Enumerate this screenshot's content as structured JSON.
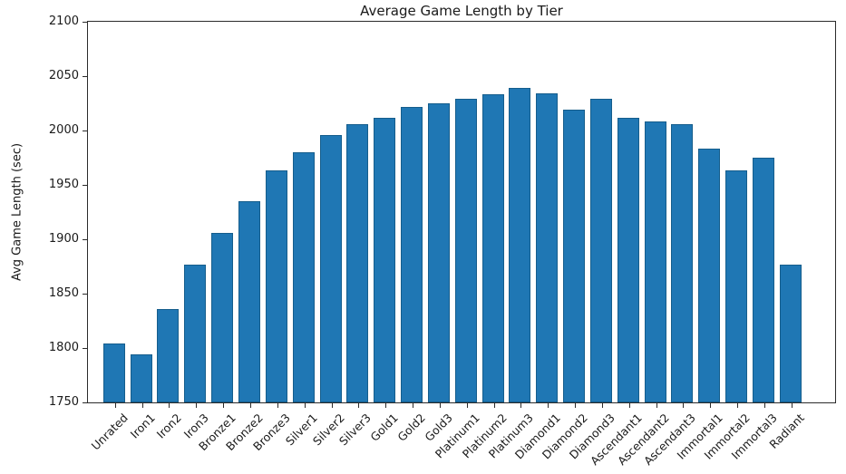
{
  "figure": {
    "title": "Average Game Length by Tier",
    "ylabel": "Avg Game Length (sec)"
  },
  "colors": {
    "bar_fill": "#1f77b4",
    "bar_edge": "#155d8c",
    "axis": "#2b2b2b",
    "text": "#1a1a1a",
    "background": "#ffffff"
  },
  "chart_data": {
    "type": "bar",
    "title": "Average Game Length by Tier",
    "xlabel": "",
    "ylabel": "Avg Game Length (sec)",
    "ylim": [
      1750,
      2100
    ],
    "yticks": [
      1750,
      1800,
      1850,
      1900,
      1950,
      2000,
      2050,
      2100
    ],
    "grid": false,
    "legend_position": "none",
    "x_tick_rotation_deg": 45,
    "categories": [
      "Unrated",
      "Iron1",
      "Iron2",
      "Iron3",
      "Bronze1",
      "Bronze2",
      "Bronze3",
      "Silver1",
      "Silver2",
      "Silver3",
      "Gold1",
      "Gold2",
      "Gold3",
      "Platinum1",
      "Platinum2",
      "Platinum3",
      "Diamond1",
      "Diamond2",
      "Diamond3",
      "Ascendant1",
      "Ascendant2",
      "Ascendant3",
      "Immortal1",
      "Immortal2",
      "Immortal3",
      "Radiant"
    ],
    "values": [
      1804,
      1794,
      1836,
      1877,
      1906,
      1935,
      1963,
      1980,
      1996,
      2006,
      2012,
      2022,
      2025,
      2029,
      2033,
      2039,
      2034,
      2019,
      2029,
      2012,
      2008,
      2006,
      1983,
      1963,
      1975,
      1877
    ]
  }
}
